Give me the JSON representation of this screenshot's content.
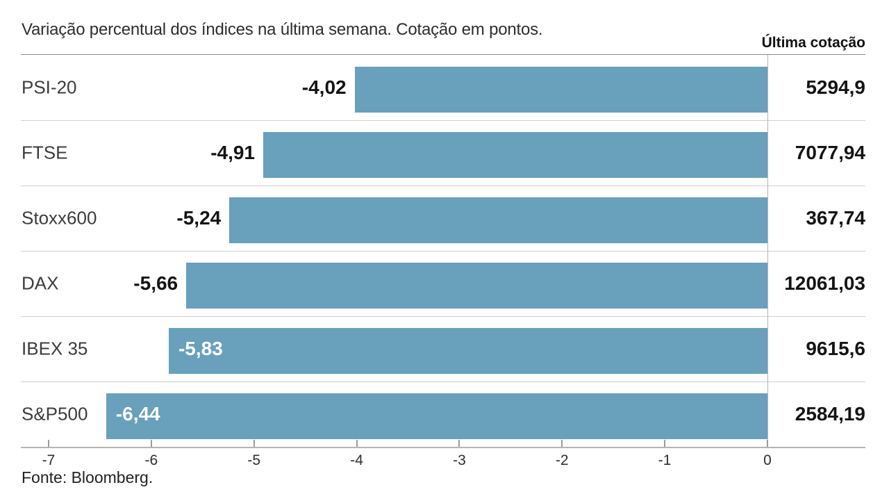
{
  "page": {
    "title": "Variação percentual dos índices na última semana. Cotação em pontos.",
    "column_header": "Última cotação",
    "source": "Fonte: Bloomberg."
  },
  "colors": {
    "bar": "#69a0bc",
    "axis_line": "#b5b5b5",
    "row_separator": "#cfcfcf",
    "header_rule": "#8e8e8e",
    "tick": "#9b9b9b",
    "title_text": "#2e2e2e",
    "category_text": "#3c3c3c",
    "value_text": "#141414",
    "bar_inside_label": "#ffffff"
  },
  "chart_data": {
    "type": "bar",
    "orientation": "horizontal",
    "title": "Variação percentual dos índices na última semana. Cotação em pontos.",
    "right_column_header": "Última cotação",
    "source": "Fonte: Bloomberg.",
    "categories": [
      "PSI-20",
      "FTSE",
      "Stoxx600",
      "DAX",
      "IBEX 35",
      "S&P500"
    ],
    "values": [
      -4.02,
      -4.91,
      -5.24,
      -5.66,
      -5.83,
      -6.44
    ],
    "value_labels": [
      "-4,02",
      "-4,91",
      "-5,24",
      "-5,66",
      "-5,83",
      "-6,44"
    ],
    "last_quote_labels": [
      "5294,9",
      "7077,94",
      "367,74",
      "12061,03",
      "9615,6",
      "2584,19"
    ],
    "xlim": [
      -7,
      0
    ],
    "x_ticks": [
      -7,
      -6,
      -5,
      -4,
      -3,
      -2,
      -1,
      0
    ],
    "x_tick_labels": [
      "-7",
      "-6",
      "-5",
      "-4",
      "-3",
      "-2",
      "-1",
      "0"
    ],
    "bar_color": "#69a0bc",
    "legend": "none",
    "grid": "row-separators"
  }
}
